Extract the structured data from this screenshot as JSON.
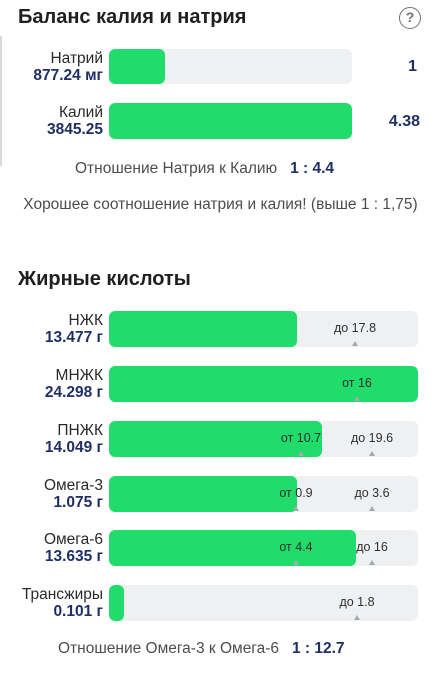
{
  "balance": {
    "title": "Баланс калия и натрия",
    "help_icon": "question-circle-icon",
    "sodium": {
      "name": "Натрий",
      "amount": "877.24 мг",
      "fill_fraction": 0.23,
      "ratio_part": "1"
    },
    "potassium": {
      "name": "Калий",
      "amount": "3845.25",
      "fill_fraction": 1.0,
      "ratio_part": "4.38"
    },
    "ratio_label": "Отношение Натрия к Калию",
    "ratio_value": "1 : 4.4",
    "note": "Хорошее соотношение натрия и калия! (выше 1 : 1,75)"
  },
  "fats": {
    "title": "Жирные кислоты",
    "rows": [
      {
        "name": "НЖК",
        "amount": "13.477 г",
        "fill_fraction": 0.61,
        "marks": [
          "до 17.8"
        ]
      },
      {
        "name": "МНЖК",
        "amount": "24.298 г",
        "fill_fraction": 1.0,
        "marks": [
          "от 16"
        ]
      },
      {
        "name": "ПНЖК",
        "amount": "14.049 г",
        "fill_fraction": 0.69,
        "marks": [
          "от 10.7",
          "до 19.6"
        ]
      },
      {
        "name": "Омега-3",
        "amount": "1.075 г",
        "fill_fraction": 0.61,
        "marks": [
          "от 0.9",
          "до 3.6"
        ]
      },
      {
        "name": "Омега-6",
        "amount": "13.635 г",
        "fill_fraction": 0.8,
        "marks": [
          "от 4.4",
          "до 16"
        ]
      },
      {
        "name": "Трансжиры",
        "amount": "0.101 г",
        "fill_fraction": 0.05,
        "marks": [
          "до 1.8"
        ]
      }
    ],
    "ratio_label": "Отношение Омега-3 к Омега-6",
    "ratio_value": "1 : 12.7"
  },
  "colors": {
    "fill": "#1fdc6b",
    "track": "#eef0f2",
    "value_text": "#1f2f66"
  }
}
